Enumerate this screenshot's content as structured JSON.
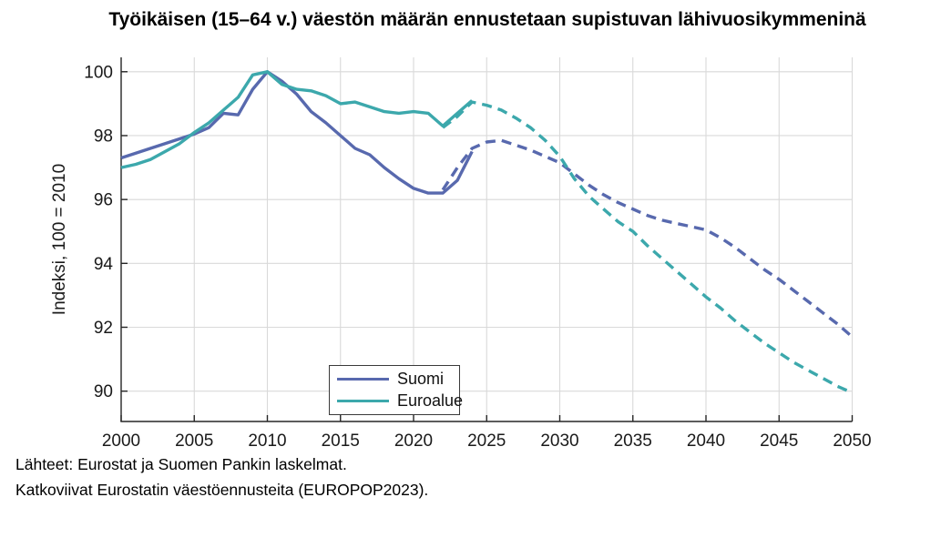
{
  "title": "Työikäisen (15–64 v.) väestön määrän ennustetaan supistuvan lähivuosikymmeninä",
  "footer": {
    "line1": "Lähteet: Eurostat ja Suomen Pankin laskelmat.",
    "line2": "Katkoviivat Eurostatin väestöennusteita (EUROPOP2023)."
  },
  "legend": {
    "items": [
      {
        "label": "Suomi",
        "color": "#5869AE"
      },
      {
        "label": "Euroalue",
        "color": "#3CA8AC"
      }
    ]
  },
  "chart_data": {
    "type": "line",
    "title": "Työikäisen (15–64 v.) väestön määrän ennustetaan supistuvan lähivuosikymmeninä",
    "xlabel": "",
    "ylabel": "Indeksi, 100 = 2010",
    "xlim": [
      2000,
      2050
    ],
    "ylim": [
      89.05,
      100.45
    ],
    "xticks": [
      2000,
      2005,
      2010,
      2015,
      2020,
      2025,
      2030,
      2035,
      2040,
      2045,
      2050
    ],
    "yticks": [
      90,
      92,
      94,
      96,
      98,
      100
    ],
    "grid": true,
    "legend_position": "inside-bottom-center",
    "grid_color": "#d9d9d9",
    "axis_color": "#262626",
    "dashed_meaning": "Eurostat population projection (EUROPOP2023)",
    "series": [
      {
        "name": "Suomi",
        "style": "solid",
        "color": "#5869AE",
        "x": [
          2000,
          2001,
          2002,
          2003,
          2004,
          2005,
          2006,
          2007,
          2008,
          2009,
          2010,
          2011,
          2012,
          2013,
          2014,
          2015,
          2016,
          2017,
          2018,
          2019,
          2020,
          2021,
          2022,
          2023,
          2024
        ],
        "values": [
          97.3,
          97.45,
          97.6,
          97.75,
          97.9,
          98.05,
          98.25,
          98.7,
          98.65,
          99.45,
          100.0,
          99.7,
          99.3,
          98.75,
          98.4,
          98.0,
          97.6,
          97.4,
          97.0,
          96.65,
          96.35,
          96.2,
          96.2,
          96.6,
          97.5
        ]
      },
      {
        "name": "Suomi (ennuste)",
        "style": "dashed",
        "color": "#5869AE",
        "x": [
          2022,
          2023,
          2024,
          2025,
          2026,
          2027,
          2028,
          2029,
          2030,
          2031,
          2032,
          2033,
          2034,
          2035,
          2036,
          2037,
          2038,
          2039,
          2040,
          2041,
          2042,
          2043,
          2044,
          2045,
          2046,
          2047,
          2048,
          2049,
          2050
        ],
        "values": [
          96.3,
          97.0,
          97.6,
          97.8,
          97.85,
          97.7,
          97.55,
          97.35,
          97.15,
          96.8,
          96.45,
          96.15,
          95.9,
          95.7,
          95.5,
          95.35,
          95.25,
          95.15,
          95.05,
          94.8,
          94.5,
          94.15,
          93.8,
          93.5,
          93.15,
          92.8,
          92.45,
          92.1,
          91.7
        ]
      },
      {
        "name": "Euroalue",
        "style": "solid",
        "color": "#3CA8AC",
        "x": [
          2000,
          2001,
          2002,
          2003,
          2004,
          2005,
          2006,
          2007,
          2008,
          2009,
          2010,
          2011,
          2012,
          2013,
          2014,
          2015,
          2016,
          2017,
          2018,
          2019,
          2020,
          2021,
          2022,
          2023,
          2024
        ],
        "values": [
          97.0,
          97.1,
          97.25,
          97.5,
          97.75,
          98.1,
          98.4,
          98.8,
          99.2,
          99.9,
          100.0,
          99.6,
          99.45,
          99.4,
          99.25,
          99.0,
          99.05,
          98.9,
          98.75,
          98.7,
          98.75,
          98.7,
          98.3,
          98.7,
          99.1
        ]
      },
      {
        "name": "Euroalue (ennuste)",
        "style": "dashed",
        "color": "#3CA8AC",
        "x": [
          2022,
          2023,
          2024,
          2025,
          2026,
          2027,
          2028,
          2029,
          2030,
          2031,
          2032,
          2033,
          2034,
          2035,
          2036,
          2037,
          2038,
          2039,
          2040,
          2041,
          2042,
          2043,
          2044,
          2045,
          2046,
          2047,
          2048,
          2049,
          2050
        ],
        "values": [
          98.25,
          98.6,
          99.05,
          98.95,
          98.8,
          98.55,
          98.25,
          97.85,
          97.35,
          96.65,
          96.1,
          95.7,
          95.3,
          95.0,
          94.55,
          94.15,
          93.75,
          93.35,
          92.95,
          92.6,
          92.2,
          91.85,
          91.5,
          91.2,
          90.9,
          90.65,
          90.4,
          90.15,
          89.95
        ]
      }
    ]
  }
}
